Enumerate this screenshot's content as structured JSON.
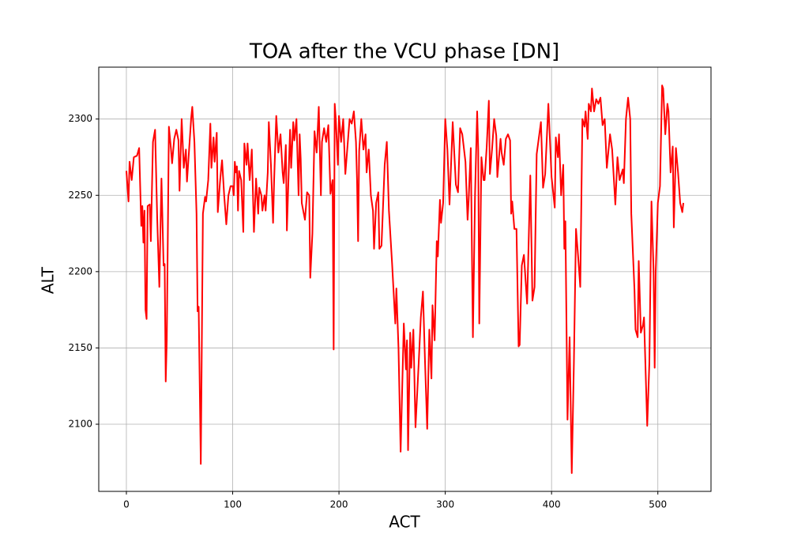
{
  "chart_data": {
    "type": "line",
    "title": "TOA after the VCU phase [DN]",
    "x_label": "ACT",
    "y_label": "ALT",
    "xlim": [
      -26,
      550
    ],
    "ylim": [
      2056,
      2334
    ],
    "xticks": [
      0,
      100,
      200,
      300,
      400,
      500
    ],
    "yticks": [
      2100,
      2150,
      2200,
      2250,
      2300
    ],
    "grid": true,
    "series": [
      {
        "color": "#ff0000",
        "x": [
          0,
          2,
          3,
          5,
          7,
          10,
          12,
          14,
          15,
          16,
          17,
          18,
          19,
          20,
          22,
          23,
          25,
          27,
          29,
          31,
          33,
          35,
          36,
          37,
          38,
          40,
          42,
          43,
          45,
          47,
          49,
          50,
          52,
          54,
          56,
          57,
          59,
          61,
          62,
          64,
          66,
          67,
          68,
          70,
          72,
          74,
          75,
          77,
          79,
          80,
          82,
          83,
          85,
          86,
          88,
          89,
          90,
          92,
          94,
          96,
          98,
          100,
          101,
          102,
          103,
          104,
          105,
          106,
          108,
          110,
          111,
          113,
          114,
          116,
          118,
          120,
          122,
          124,
          125,
          127,
          128,
          130,
          131,
          133,
          134,
          136,
          138,
          139,
          141,
          143,
          145,
          147,
          148,
          150,
          151,
          153,
          154,
          155,
          157,
          158,
          160,
          162,
          163,
          164,
          165,
          168,
          170,
          172,
          173,
          175,
          177,
          179,
          181,
          183,
          184,
          186,
          188,
          190,
          192,
          194,
          195,
          196,
          197,
          199,
          200,
          202,
          204,
          206,
          208,
          210,
          212,
          214,
          216,
          217,
          218,
          219,
          221,
          223,
          225,
          226,
          228,
          230,
          232,
          233,
          235,
          237,
          238,
          240,
          243,
          245,
          247,
          250,
          253,
          254,
          256,
          258,
          261,
          263,
          264,
          265,
          267,
          268,
          270,
          272,
          275,
          277,
          279,
          281,
          283,
          285,
          287,
          288,
          290,
          292,
          293,
          295,
          296,
          298,
          300,
          302,
          304,
          307,
          310,
          312,
          314,
          316,
          319,
          321,
          322,
          324,
          326,
          328,
          330,
          331,
          332,
          334,
          336,
          337,
          339,
          341,
          342,
          344,
          346,
          348,
          349,
          352,
          353,
          355,
          357,
          359,
          361,
          362,
          363,
          365,
          367,
          369,
          370,
          372,
          374,
          377,
          380,
          382,
          384,
          386,
          390,
          392,
          394,
          397,
          400,
          403,
          404,
          406,
          407,
          409,
          411,
          412,
          413,
          415,
          417,
          419,
          421,
          423,
          425,
          427,
          429,
          431,
          432,
          434,
          435,
          437,
          438,
          440,
          442,
          444,
          446,
          448,
          450,
          452,
          455,
          457,
          460,
          462,
          464,
          467,
          468,
          470,
          472,
          474,
          475,
          478,
          479,
          481,
          482,
          484,
          486,
          487,
          490,
          492,
          494,
          496,
          497,
          498,
          500,
          502,
          504,
          505,
          507,
          509,
          510,
          512,
          514,
          515,
          517,
          519,
          521,
          523,
          524
        ],
        "values": [
          2266,
          2246,
          2272,
          2260,
          2275,
          2276,
          2281,
          2230,
          2243,
          2219,
          2240,
          2175,
          2169,
          2243,
          2244,
          2220,
          2285,
          2293,
          2235,
          2190,
          2261,
          2204,
          2205,
          2128,
          2155,
          2295,
          2280,
          2271,
          2287,
          2293,
          2286,
          2253,
          2300,
          2268,
          2280,
          2259,
          2280,
          2301,
          2308,
          2285,
          2238,
          2174,
          2177,
          2074,
          2238,
          2249,
          2246,
          2260,
          2297,
          2268,
          2288,
          2272,
          2291,
          2239,
          2258,
          2266,
          2273,
          2250,
          2231,
          2250,
          2256,
          2256,
          2250,
          2272,
          2265,
          2269,
          2240,
          2266,
          2260,
          2226,
          2284,
          2270,
          2284,
          2260,
          2280,
          2226,
          2261,
          2238,
          2255,
          2250,
          2240,
          2250,
          2240,
          2265,
          2298,
          2270,
          2232,
          2260,
          2302,
          2278,
          2290,
          2265,
          2258,
          2283,
          2227,
          2272,
          2293,
          2268,
          2298,
          2286,
          2300,
          2250,
          2290,
          2274,
          2245,
          2234,
          2252,
          2250,
          2196,
          2225,
          2292,
          2278,
          2308,
          2250,
          2285,
          2294,
          2285,
          2296,
          2251,
          2260,
          2149,
          2310,
          2300,
          2270,
          2302,
          2285,
          2300,
          2264,
          2282,
          2300,
          2297,
          2305,
          2285,
          2260,
          2220,
          2279,
          2300,
          2280,
          2290,
          2265,
          2280,
          2250,
          2240,
          2215,
          2245,
          2252,
          2215,
          2217,
          2270,
          2285,
          2240,
          2205,
          2166,
          2189,
          2150,
          2082,
          2166,
          2136,
          2155,
          2083,
          2160,
          2137,
          2162,
          2098,
          2140,
          2170,
          2187,
          2140,
          2097,
          2162,
          2130,
          2178,
          2155,
          2220,
          2210,
          2247,
          2232,
          2245,
          2300,
          2280,
          2244,
          2298,
          2257,
          2252,
          2294,
          2290,
          2272,
          2234,
          2247,
          2281,
          2157,
          2250,
          2305,
          2280,
          2166,
          2275,
          2260,
          2260,
          2282,
          2312,
          2264,
          2280,
          2300,
          2289,
          2262,
          2287,
          2278,
          2270,
          2287,
          2290,
          2286,
          2238,
          2246,
          2228,
          2228,
          2151,
          2152,
          2204,
          2211,
          2179,
          2263,
          2181,
          2190,
          2277,
          2298,
          2255,
          2264,
          2310,
          2262,
          2242,
          2288,
          2275,
          2290,
          2250,
          2270,
          2215,
          2233,
          2103,
          2157,
          2068,
          2140,
          2228,
          2210,
          2190,
          2300,
          2295,
          2305,
          2287,
          2310,
          2305,
          2320,
          2305,
          2313,
          2310,
          2314,
          2296,
          2300,
          2268,
          2290,
          2280,
          2244,
          2275,
          2260,
          2267,
          2258,
          2300,
          2314,
          2300,
          2238,
          2188,
          2162,
          2157,
          2207,
          2160,
          2165,
          2170,
          2099,
          2140,
          2246,
          2200,
          2137,
          2200,
          2245,
          2256,
          2322,
          2320,
          2290,
          2310,
          2305,
          2265,
          2282,
          2229,
          2281,
          2265,
          2245,
          2239,
          2245
        ]
      }
    ]
  }
}
